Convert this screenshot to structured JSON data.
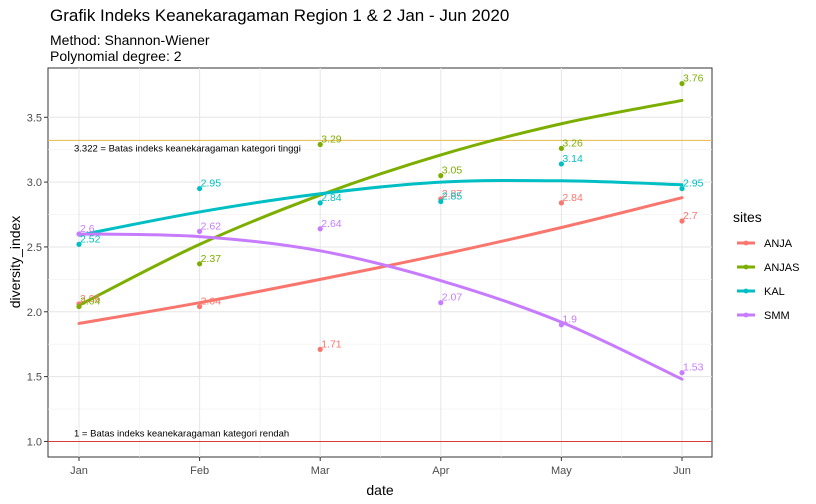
{
  "chart_data": {
    "type": "scatter",
    "title": "Grafik Indeks Keanekaragaman Region 1 & 2 Jan - Jun 2020",
    "subtitle_lines": [
      "Method: Shannon-Wiener",
      "Polynomial degree: 2"
    ],
    "xlabel": "date",
    "ylabel": "diversity_index",
    "categories": [
      "Jan",
      "Feb",
      "Mar",
      "Apr",
      "May",
      "Jun"
    ],
    "ylim": [
      0.88,
      3.88
    ],
    "y_ticks": [
      1.0,
      1.5,
      2.0,
      2.5,
      3.0,
      3.5
    ],
    "y_tick_labels": [
      "1.0",
      "1.5",
      "2.0",
      "2.5",
      "3.0",
      "3.5"
    ],
    "grid": true,
    "legend": {
      "title": "sites",
      "placement": "right"
    },
    "reference_lines": [
      {
        "y": 3.322,
        "color": "#E7B74A",
        "label": "3.322 = Batas indeks keanekaragaman kategori tinggi"
      },
      {
        "y": 1.0,
        "color": "#D93A3A",
        "label": "1 = Batas indeks keanekaragaman kategori rendah"
      }
    ],
    "series": [
      {
        "name": "ANJA",
        "color": "#F8766D",
        "values": [
          2.06,
          2.04,
          1.71,
          2.87,
          2.84,
          2.7
        ],
        "labels": [
          "2.06",
          "2.04",
          "1.71",
          "2.87",
          "2.84",
          "2.7"
        ],
        "fit": [
          1.91,
          2.07,
          2.25,
          2.44,
          2.65,
          2.88
        ]
      },
      {
        "name": "ANJAS",
        "color": "#7CAE00",
        "values": [
          2.04,
          2.37,
          3.29,
          3.05,
          3.26,
          3.76
        ],
        "labels": [
          "2.04",
          "2.37",
          "3.29",
          "3.05",
          "3.26",
          "3.76"
        ],
        "fit": [
          2.05,
          2.52,
          2.9,
          3.21,
          3.45,
          3.63
        ]
      },
      {
        "name": "KAL",
        "color": "#00BFC4",
        "values": [
          2.52,
          2.95,
          2.84,
          2.85,
          3.14,
          2.95
        ],
        "labels": [
          "2.52",
          "2.95",
          "2.84",
          "2.85",
          "3.14",
          "2.95"
        ],
        "fit": [
          2.59,
          2.77,
          2.91,
          3.0,
          3.01,
          2.98
        ]
      },
      {
        "name": "SMM",
        "color": "#C77CFF",
        "values": [
          2.6,
          2.62,
          2.64,
          2.07,
          1.9,
          1.53
        ],
        "labels": [
          "2.6",
          "2.62",
          "2.64",
          "2.07",
          "1.9",
          "1.53"
        ],
        "fit": [
          2.6,
          2.58,
          2.47,
          2.24,
          1.92,
          1.48
        ]
      }
    ]
  }
}
